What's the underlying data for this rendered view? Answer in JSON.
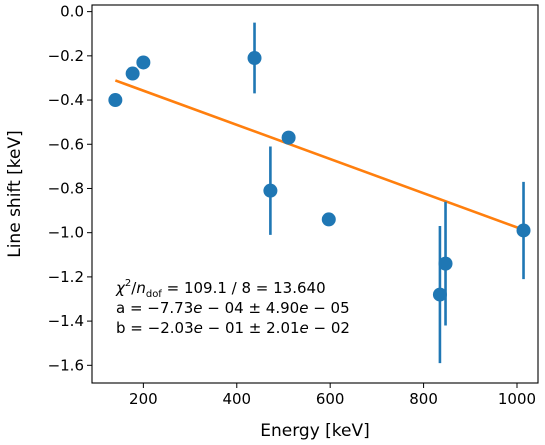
{
  "chart_data": {
    "type": "scatter",
    "xlabel": "Energy [keV]",
    "ylabel": "Line shift [keV]",
    "xlim": [
      90,
      1045
    ],
    "ylim": [
      -1.68,
      0.03
    ],
    "xticks": [
      200,
      400,
      600,
      800,
      1000
    ],
    "xtick_labels": [
      "200",
      "400",
      "600",
      "800",
      "1000"
    ],
    "yticks": [
      0.0,
      -0.2,
      -0.4,
      -0.6,
      -0.8,
      -1.0,
      -1.2,
      -1.4,
      -1.6
    ],
    "ytick_labels": [
      "0.0",
      "−0.2",
      "−0.4",
      "−0.6",
      "−0.8",
      "−1.0",
      "−1.2",
      "−1.4",
      "−1.6"
    ],
    "grid": false,
    "series": [
      {
        "kind": "points_with_errorbars",
        "color": "#1f77b4",
        "points": [
          {
            "x": 140,
            "y": -0.4,
            "yerr": 0.0
          },
          {
            "x": 177,
            "y": -0.28,
            "yerr": 0.0
          },
          {
            "x": 200,
            "y": -0.23,
            "yerr": 0.0
          },
          {
            "x": 438,
            "y": -0.21,
            "yerr": 0.16
          },
          {
            "x": 472,
            "y": -0.81,
            "yerr": 0.2
          },
          {
            "x": 511,
            "y": -0.57,
            "yerr": 0.0
          },
          {
            "x": 597,
            "y": -0.94,
            "yerr": 0.0
          },
          {
            "x": 835,
            "y": -1.28,
            "yerr": 0.31
          },
          {
            "x": 847,
            "y": -1.14,
            "yerr": 0.28
          },
          {
            "x": 1014,
            "y": -0.99,
            "yerr": 0.22
          }
        ]
      },
      {
        "kind": "fit_line",
        "color": "#ff7f0e",
        "slope": -0.000773,
        "intercept": -0.203,
        "x_range": [
          140,
          1014
        ]
      }
    ],
    "annotation_lines": [
      "χ²/n_dof = 109.1 / 8 = 13.640",
      "a = −7.73e − 04 ± 4.90e − 05",
      "b = −2.03e − 01 ± 2.01e − 02"
    ],
    "annotation_parts": {
      "chi_prefix": "χ",
      "chi_sup": "2",
      "chi_slash": "/",
      "chi_n": "n",
      "chi_sub": "dof",
      "chi_rest": " = 109.1 / 8 = 13.640",
      "a_prefix": "a = ",
      "a_val": "−7.73",
      "a_e1": "e",
      "a_mid": " − 04 ± 4.90",
      "a_e2": "e",
      "a_end": " − 05",
      "b_prefix": "b = ",
      "b_val": "−2.03",
      "b_e1": "e",
      "b_mid": " − 01 ± 2.01",
      "b_e2": "e",
      "b_end": " − 02"
    }
  }
}
